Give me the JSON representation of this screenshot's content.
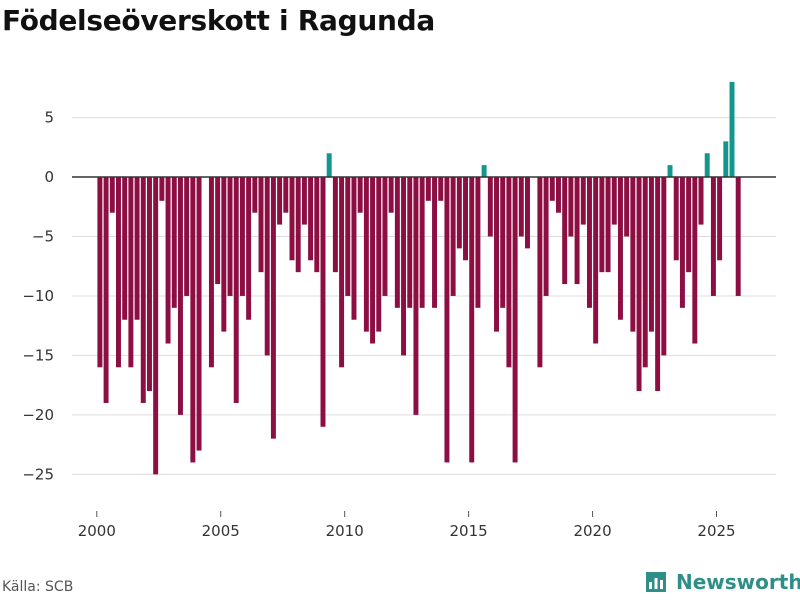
{
  "chart_data": {
    "type": "bar",
    "title": "Födelseöverskott i Ragunda",
    "xlabel": "",
    "ylabel": "",
    "ylim": [
      -28,
      9
    ],
    "xlim": [
      1999.0,
      2027.4
    ],
    "yticks": [
      5,
      0,
      -5,
      -10,
      -15,
      -20,
      -25
    ],
    "ytick_labels": [
      "5",
      "0",
      "−5",
      "−10",
      "−15",
      "−20",
      "−25"
    ],
    "xticks": [
      2000,
      2005,
      2010,
      2015,
      2020,
      2025
    ],
    "xtick_labels": [
      "2000",
      "2005",
      "2010",
      "2015",
      "2020",
      "2025"
    ],
    "bar_width_years": 0.2,
    "positive_color": "#13968e",
    "negative_color": "#8c0e43",
    "grid": true,
    "x": [
      2000.125,
      2000.375,
      2000.625,
      2000.875,
      2001.125,
      2001.375,
      2001.625,
      2001.875,
      2002.125,
      2002.375,
      2002.625,
      2002.875,
      2003.125,
      2003.375,
      2003.625,
      2003.875,
      2004.125,
      2004.375,
      2004.625,
      2004.875,
      2005.125,
      2005.375,
      2005.625,
      2005.875,
      2006.125,
      2006.375,
      2006.625,
      2006.875,
      2007.125,
      2007.375,
      2007.625,
      2007.875,
      2008.125,
      2008.375,
      2008.625,
      2008.875,
      2009.125,
      2009.375,
      2009.625,
      2009.875,
      2010.125,
      2010.375,
      2010.625,
      2010.875,
      2011.125,
      2011.375,
      2011.625,
      2011.875,
      2012.125,
      2012.375,
      2012.625,
      2012.875,
      2013.125,
      2013.375,
      2013.625,
      2013.875,
      2014.125,
      2014.375,
      2014.625,
      2014.875,
      2015.125,
      2015.375,
      2015.625,
      2015.875,
      2016.125,
      2016.375,
      2016.625,
      2016.875,
      2017.125,
      2017.375,
      2017.625,
      2017.875,
      2018.125,
      2018.375,
      2018.625,
      2018.875,
      2019.125,
      2019.375,
      2019.625,
      2019.875,
      2020.125,
      2020.375,
      2020.625,
      2020.875,
      2021.125,
      2021.375,
      2021.625,
      2021.875,
      2022.125,
      2022.375,
      2022.625,
      2022.875,
      2023.125,
      2023.375,
      2023.625,
      2023.875,
      2024.125,
      2024.375,
      2024.625,
      2024.875,
      2025.125,
      2025.375,
      2025.625,
      2025.875
    ],
    "values": [
      -16,
      -19,
      -3,
      -16,
      -12,
      -16,
      -12,
      -19,
      -18,
      -25,
      -2,
      -14,
      -11,
      -20,
      -10,
      -24,
      -23,
      0,
      -16,
      -9,
      -13,
      -10,
      -19,
      -10,
      -12,
      -3,
      -8,
      -15,
      -22,
      -4,
      -3,
      -7,
      -8,
      -4,
      -7,
      -8,
      -21,
      2,
      -8,
      -16,
      -10,
      -12,
      -3,
      -13,
      -14,
      -13,
      -10,
      -3,
      -11,
      -15,
      -11,
      -20,
      -11,
      -2,
      -11,
      -2,
      -24,
      -10,
      -6,
      -7,
      -24,
      -11,
      1,
      -5,
      -13,
      -11,
      -16,
      -24,
      -5,
      -6,
      0,
      -16,
      -10,
      -2,
      -3,
      -9,
      -5,
      -9,
      -4,
      -11,
      -14,
      -8,
      -8,
      -4,
      -12,
      -5,
      -13,
      -18,
      -16,
      -13,
      -18,
      -15,
      1,
      -7,
      -11,
      -8,
      -14,
      -4,
      2,
      -10,
      -7,
      3,
      8,
      -10
    ]
  },
  "footer": {
    "source": "Källa: SCB",
    "brand": "Newsworthy",
    "brand_color": "#2f8f88"
  }
}
